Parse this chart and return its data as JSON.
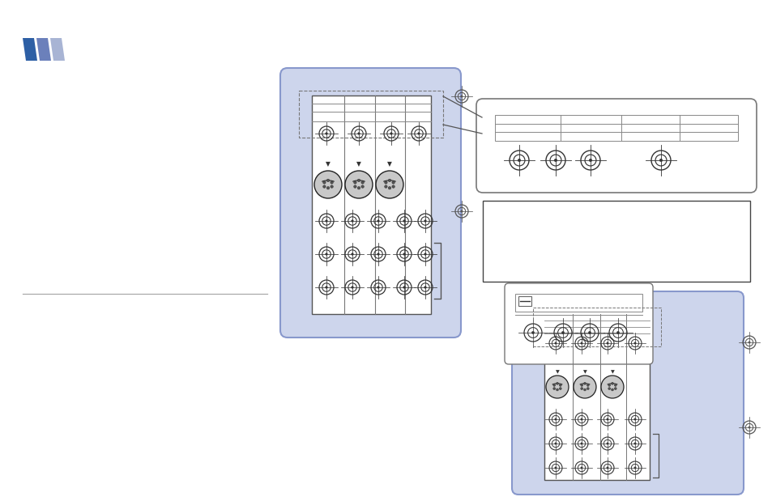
{
  "bg_color": "#ffffff",
  "logo_colors": [
    "#2d5fa5",
    "#6b80bb",
    "#a8b4d4"
  ],
  "panel_bg": "#cdd5ec",
  "line_color": "#555555"
}
